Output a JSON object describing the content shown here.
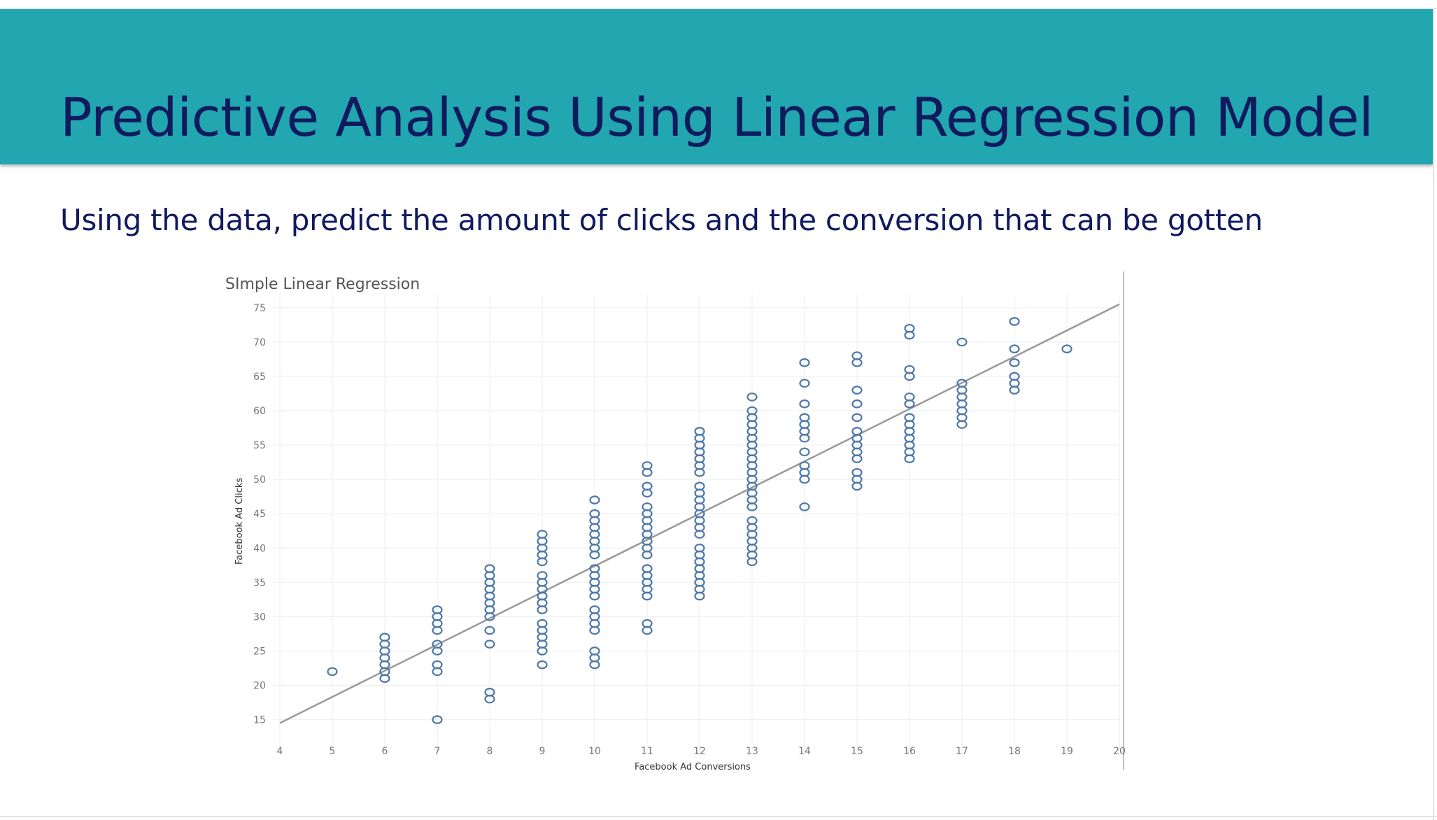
{
  "slide": {
    "title": "Predictive Analysis Using Linear Regression Model",
    "subtitle": "Using the data, predict the amount of clicks and the conversion that can be gotten"
  },
  "colors": {
    "header_band": "#22a6b0",
    "title_text": "#101a5e",
    "marker": "#4e79a7",
    "trend_line": "#999999",
    "grid": "#eeeeee"
  },
  "chart_data": {
    "type": "scatter",
    "title": "SImple Linear Regression",
    "xlabel": "Facebook Ad Conversions",
    "ylabel": "Facebook Ad Clicks",
    "xlim": [
      4,
      20
    ],
    "ylim": [
      12,
      76
    ],
    "x_ticks": [
      4,
      5,
      6,
      7,
      8,
      9,
      10,
      11,
      12,
      13,
      14,
      15,
      16,
      17,
      18,
      19,
      20
    ],
    "y_ticks": [
      15,
      20,
      25,
      30,
      35,
      40,
      45,
      50,
      55,
      60,
      65,
      70,
      75
    ],
    "grid": true,
    "legend": "none",
    "marker": "hollow circle",
    "trend_line": {
      "x": [
        4,
        20
      ],
      "y": [
        14.5,
        75.5
      ]
    },
    "points": [
      {
        "x": 5,
        "ys": [
          22
        ]
      },
      {
        "x": 6,
        "ys": [
          21,
          22,
          23,
          24,
          25,
          26,
          27
        ]
      },
      {
        "x": 7,
        "ys": [
          15,
          22,
          23,
          25,
          26,
          28,
          29,
          30,
          31
        ]
      },
      {
        "x": 8,
        "ys": [
          18,
          19,
          26,
          28,
          30,
          31,
          32,
          33,
          34,
          35,
          36,
          37
        ]
      },
      {
        "x": 9,
        "ys": [
          23,
          25,
          26,
          27,
          28,
          29,
          31,
          32,
          33,
          34,
          35,
          36,
          38,
          39,
          40,
          41,
          42
        ]
      },
      {
        "x": 10,
        "ys": [
          23,
          24,
          25,
          28,
          29,
          30,
          31,
          33,
          34,
          35,
          36,
          37,
          39,
          40,
          41,
          42,
          43,
          44,
          45,
          47
        ]
      },
      {
        "x": 11,
        "ys": [
          28,
          29,
          33,
          34,
          35,
          36,
          37,
          39,
          40,
          41,
          42,
          43,
          44,
          45,
          46,
          48,
          49,
          51,
          52
        ]
      },
      {
        "x": 12,
        "ys": [
          33,
          34,
          35,
          36,
          37,
          38,
          39,
          40,
          42,
          43,
          44,
          45,
          46,
          47,
          48,
          49,
          51,
          52,
          53,
          54,
          55,
          56,
          57
        ]
      },
      {
        "x": 13,
        "ys": [
          38,
          39,
          40,
          41,
          42,
          43,
          44,
          46,
          47,
          48,
          49,
          50,
          51,
          52,
          53,
          54,
          55,
          56,
          57,
          58,
          59,
          60,
          62
        ]
      },
      {
        "x": 14,
        "ys": [
          46,
          50,
          51,
          52,
          54,
          56,
          57,
          58,
          59,
          61,
          64,
          67
        ]
      },
      {
        "x": 15,
        "ys": [
          49,
          50,
          51,
          53,
          54,
          55,
          56,
          57,
          59,
          61,
          63,
          67,
          68
        ]
      },
      {
        "x": 16,
        "ys": [
          53,
          54,
          55,
          56,
          57,
          58,
          59,
          61,
          62,
          65,
          66,
          71,
          72
        ]
      },
      {
        "x": 17,
        "ys": [
          58,
          59,
          60,
          61,
          62,
          63,
          64,
          70
        ]
      },
      {
        "x": 18,
        "ys": [
          63,
          64,
          65,
          67,
          69,
          73
        ]
      },
      {
        "x": 19,
        "ys": [
          69
        ]
      }
    ]
  }
}
